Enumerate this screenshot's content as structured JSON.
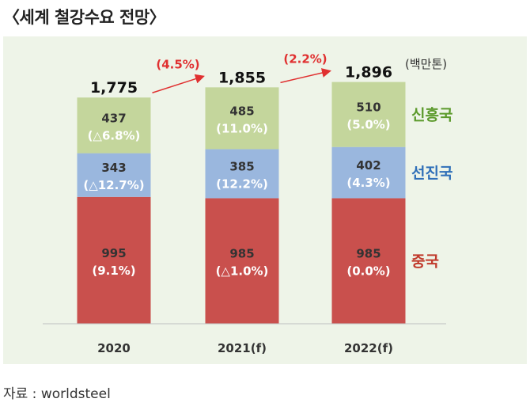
{
  "title": "〈세계 철강수요 전망〉",
  "source": "자료 : worldsteel",
  "chart_data": {
    "type": "stacked-bar",
    "unit": "(백만톤)",
    "categories": [
      "2020",
      "2021(f)",
      "2022(f)"
    ],
    "totals": [
      "1,775",
      "1,855",
      "1,896"
    ],
    "growth": [
      {
        "from": "2020",
        "to": "2021(f)",
        "label": "(4.5%)"
      },
      {
        "from": "2021(f)",
        "to": "2022(f)",
        "label": "(2.2%)"
      }
    ],
    "series": [
      {
        "name": "중국",
        "color": "#c9504d",
        "label_color": "#c0392b",
        "values": [
          995,
          985,
          985
        ],
        "value_labels": [
          "995",
          "985",
          "985"
        ],
        "pct": [
          "(9.1%)",
          "(△1.0%)",
          "(0.0%)"
        ]
      },
      {
        "name": "선진국",
        "color": "#9ab7de",
        "label_color": "#2f6fb8",
        "values": [
          343,
          385,
          402
        ],
        "value_labels": [
          "343",
          "385",
          "402"
        ],
        "pct": [
          "(△12.7%)",
          "(12.2%)",
          "(4.3%)"
        ]
      },
      {
        "name": "신흥국",
        "color": "#c4d69c",
        "label_color": "#5c9a2c",
        "values": [
          437,
          485,
          510
        ],
        "value_labels": [
          "437",
          "485",
          "510"
        ],
        "pct": [
          "(△6.8%)",
          "(11.0%)",
          "(5.0%)"
        ]
      }
    ]
  }
}
